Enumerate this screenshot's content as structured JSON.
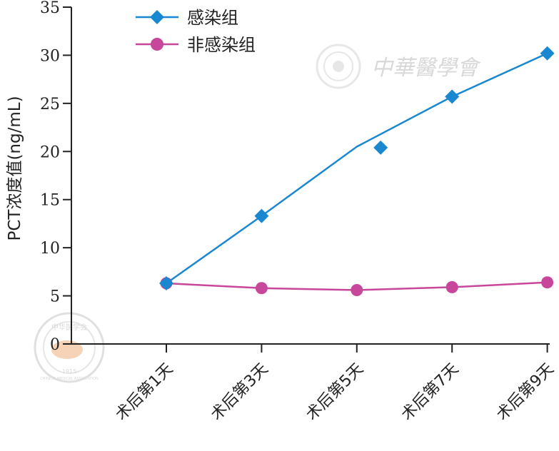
{
  "chart_data": {
    "type": "line",
    "categories": [
      "术后第1天",
      "术后第3天",
      "术后第5天",
      "术后第7天",
      "术后第9天"
    ],
    "ylabel": "PCT浓度值(ng/mL)",
    "ylim": [
      0,
      35
    ],
    "yticks": [
      0,
      5,
      10,
      15,
      20,
      25,
      30,
      35
    ],
    "grid": false,
    "legend_position": "top-left",
    "series": [
      {
        "name": "感染组",
        "color": "#1a88d0",
        "marker": "diamond",
        "line_values": [
          6.3,
          13.3,
          20.5,
          25.7,
          30.2
        ],
        "marker_x_offsets": [
          0,
          0,
          0.25,
          0,
          0
        ],
        "values": [
          6.3,
          13.3,
          20.4,
          25.7,
          30.2
        ]
      },
      {
        "name": "非感染组",
        "color": "#c7479a",
        "marker": "circle",
        "values": [
          6.3,
          5.8,
          5.6,
          5.9,
          6.4
        ]
      }
    ]
  },
  "watermark": {
    "text": "中華醫學會",
    "seal_text": "中华医学会",
    "seal_year": "1915",
    "seal_english": "CHINESE MEDICAL ASSOCIATION"
  }
}
